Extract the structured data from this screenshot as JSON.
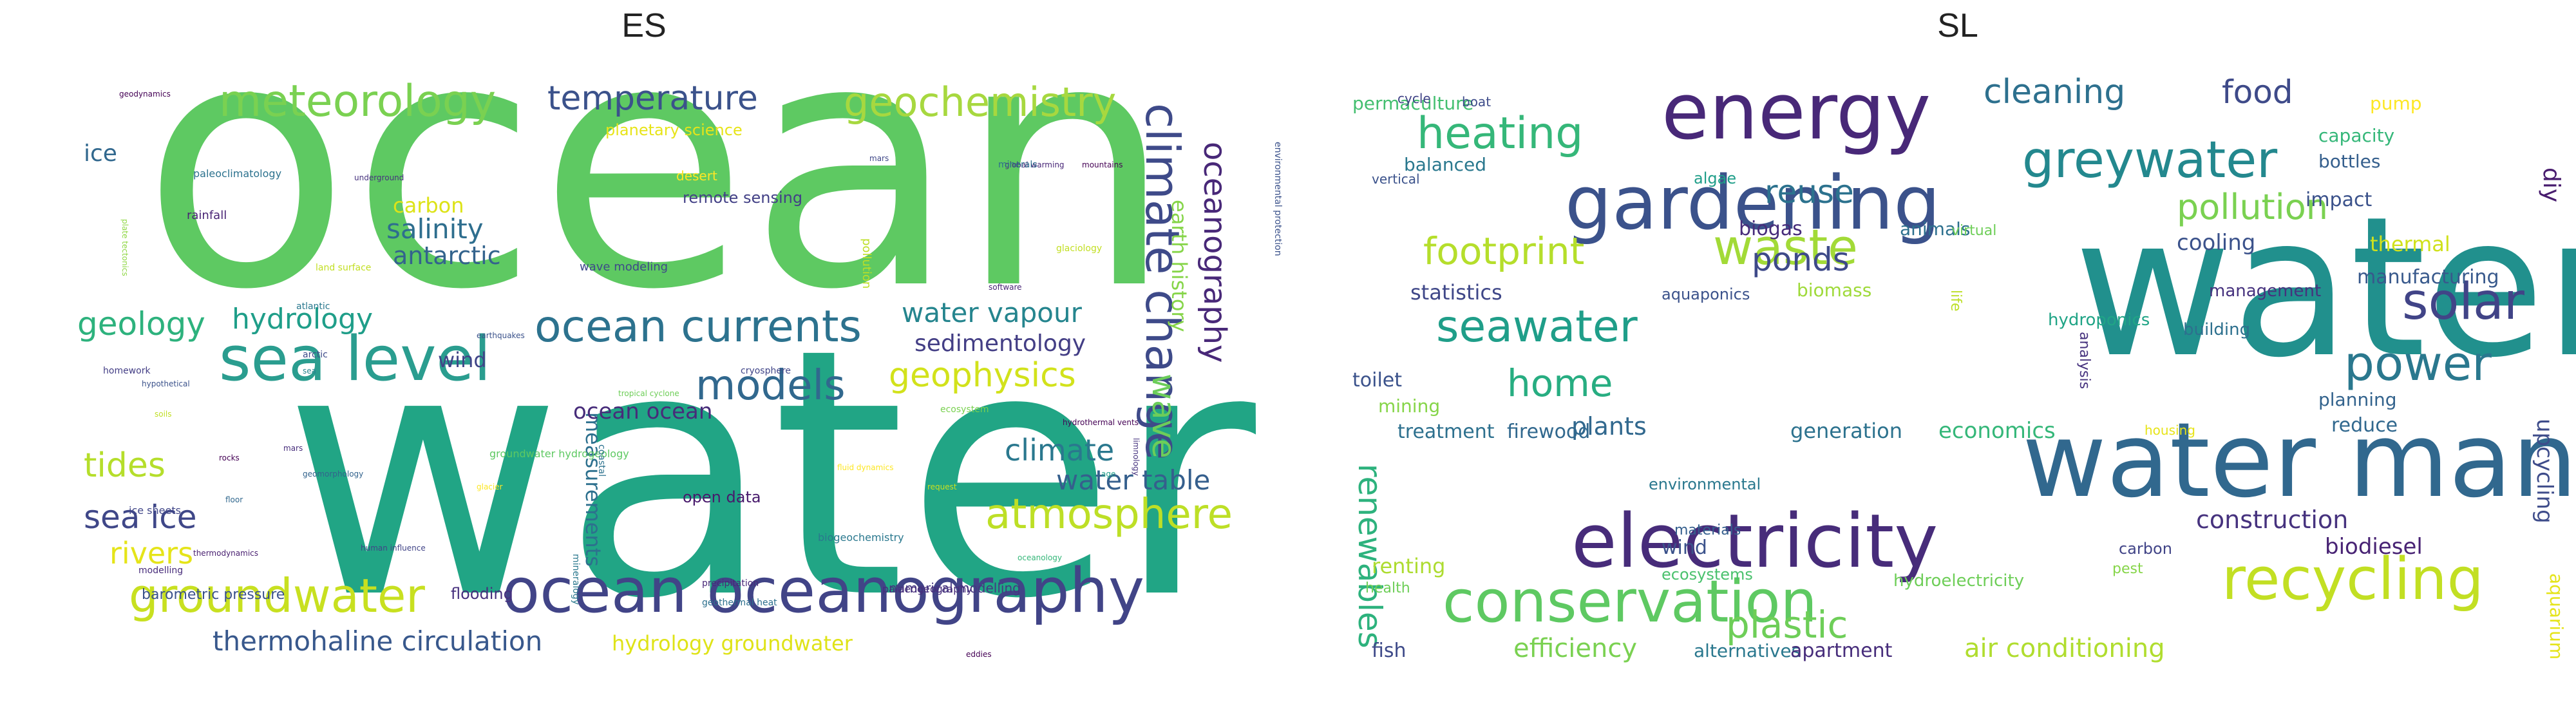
{
  "panels": [
    {
      "title": "ES",
      "words": [
        {
          "text": "ocean",
          "color": "#5ec962"
        },
        {
          "text": "water",
          "color": "#21a585"
        },
        {
          "text": "sea level",
          "color": "#2a9d8f"
        },
        {
          "text": "meteorology",
          "color": "#7ad151"
        },
        {
          "text": "geochemistry",
          "color": "#a7d83f"
        },
        {
          "text": "temperature",
          "color": "#3b528b"
        },
        {
          "text": "ocean currents",
          "color": "#2c728e"
        },
        {
          "text": "ocean oceanography",
          "color": "#414487"
        },
        {
          "text": "groundwater",
          "color": "#c8e020"
        },
        {
          "text": "climate change",
          "color": "#3e4a89"
        },
        {
          "text": "oceanography",
          "color": "#482878"
        },
        {
          "text": "models",
          "color": "#31688e"
        },
        {
          "text": "atmosphere",
          "color": "#bddf26"
        },
        {
          "text": "geophysics",
          "color": "#d2e21b"
        },
        {
          "text": "wave",
          "color": "#6ccd5a"
        },
        {
          "text": "climate",
          "color": "#2a788e"
        },
        {
          "text": "water vapour",
          "color": "#25858e"
        },
        {
          "text": "water table",
          "color": "#355f8d"
        },
        {
          "text": "sedimentology",
          "color": "#433e85"
        },
        {
          "text": "earth history",
          "color": "#86d549"
        },
        {
          "text": "geology",
          "color": "#2db27d"
        },
        {
          "text": "hydrology",
          "color": "#1f9e89"
        },
        {
          "text": "salinity",
          "color": "#2e6e8e"
        },
        {
          "text": "antarctic",
          "color": "#33638d"
        },
        {
          "text": "tides",
          "color": "#b5de2b"
        },
        {
          "text": "sea ice",
          "color": "#3f4788"
        },
        {
          "text": "rivers",
          "color": "#e5e419"
        },
        {
          "text": "ice",
          "color": "#31688e"
        },
        {
          "text": "carbon",
          "color": "#dde318"
        },
        {
          "text": "wind",
          "color": "#404588"
        },
        {
          "text": "thermohaline circulation",
          "color": "#38588c"
        },
        {
          "text": "hydrology groundwater",
          "color": "#dfe318"
        },
        {
          "text": "measurements",
          "color": "#2d708e"
        },
        {
          "text": "ocean ocean",
          "color": "#472c7a"
        },
        {
          "text": "remote sensing",
          "color": "#424086"
        },
        {
          "text": "planetary science",
          "color": "#e7e419"
        },
        {
          "text": "flooding",
          "color": "#46307e"
        },
        {
          "text": "barometric pressure",
          "color": "#3b528b"
        },
        {
          "text": "numerical modelling",
          "color": "#453781"
        },
        {
          "text": "open data",
          "color": "#481a6c"
        },
        {
          "text": "desert",
          "color": "#fde725"
        },
        {
          "text": "rainfall",
          "color": "#482374"
        },
        {
          "text": "wave modeling",
          "color": "#3e4989"
        },
        {
          "text": "biogeochemistry",
          "color": "#2a788e"
        },
        {
          "text": "groundwater hydrogeology",
          "color": "#5ec962"
        },
        {
          "text": "ice sheets",
          "color": "#404688"
        },
        {
          "text": "paleoclimatology",
          "color": "#2c728e"
        },
        {
          "text": "homework",
          "color": "#433e85"
        },
        {
          "text": "geodynamics",
          "color": "#440154"
        },
        {
          "text": "plate tectonics",
          "color": "#8fd744"
        },
        {
          "text": "earthquakes",
          "color": "#3b528b"
        },
        {
          "text": "underground",
          "color": "#46327e"
        },
        {
          "text": "global warming",
          "color": "#482677"
        },
        {
          "text": "mountains",
          "color": "#440154"
        },
        {
          "text": "glaciology",
          "color": "#c2df23"
        },
        {
          "text": "pollution",
          "color": "#bddf26"
        },
        {
          "text": "environmental protection",
          "color": "#3b528b"
        },
        {
          "text": "hydrothermal vents",
          "color": "#440154"
        },
        {
          "text": "tropical cyclone",
          "color": "#6ece58"
        },
        {
          "text": "mineralogy",
          "color": "#2a788e"
        },
        {
          "text": "human influence",
          "color": "#414487"
        },
        {
          "text": "precipitation",
          "color": "#482878"
        },
        {
          "text": "palaeogeography",
          "color": "#472d7b"
        },
        {
          "text": "fluid dynamics",
          "color": "#fde725"
        },
        {
          "text": "geothermal heat",
          "color": "#2d708e"
        },
        {
          "text": "cryosphere",
          "color": "#404588"
        },
        {
          "text": "hypothetical",
          "color": "#3b528b"
        },
        {
          "text": "soils",
          "color": "#c0df25"
        },
        {
          "text": "thermodynamics",
          "color": "#481f70"
        },
        {
          "text": "modelling",
          "color": "#472c7a"
        },
        {
          "text": "glacier",
          "color": "#fde725"
        },
        {
          "text": "rocks",
          "color": "#440154"
        },
        {
          "text": "eddies",
          "color": "#440154"
        },
        {
          "text": "software",
          "color": "#482575"
        },
        {
          "text": "minerals",
          "color": "#2e6e8e"
        },
        {
          "text": "floor",
          "color": "#31688e"
        },
        {
          "text": "atlantic",
          "color": "#2a788e"
        },
        {
          "text": "arctic",
          "color": "#3e4c8a"
        },
        {
          "text": "mars",
          "color": "#472d7b"
        },
        {
          "text": "geomorphology",
          "color": "#33638d"
        },
        {
          "text": "oceanology",
          "color": "#35b779"
        },
        {
          "text": "age",
          "color": "#1f9e89"
        },
        {
          "text": "limnology",
          "color": "#46337f"
        },
        {
          "text": "coastal",
          "color": "#2c728e"
        },
        {
          "text": "sea",
          "color": "#25848e"
        },
        {
          "text": "land surface",
          "color": "#c2df23"
        },
        {
          "text": "mars",
          "color": "#3f4788"
        },
        {
          "text": "ecosystem",
          "color": "#7ad151"
        },
        {
          "text": "request",
          "color": "#c8e020"
        }
      ]
    },
    {
      "title": "SL",
      "words": [
        {
          "text": "water",
          "color": "#21908d"
        },
        {
          "text": "water management",
          "color": "#31688e"
        },
        {
          "text": "energy",
          "color": "#482878"
        },
        {
          "text": "gardening",
          "color": "#3b528b"
        },
        {
          "text": "electricity",
          "color": "#472c7a"
        },
        {
          "text": "conservation",
          "color": "#5ec962"
        },
        {
          "text": "recycling",
          "color": "#c2df23"
        },
        {
          "text": "greywater",
          "color": "#23888e"
        },
        {
          "text": "waste",
          "color": "#a2da37"
        },
        {
          "text": "heating",
          "color": "#35b779"
        },
        {
          "text": "solar",
          "color": "#414487"
        },
        {
          "text": "power",
          "color": "#2a788e"
        },
        {
          "text": "pollution",
          "color": "#7ad151"
        },
        {
          "text": "seawater",
          "color": "#1f9e89"
        },
        {
          "text": "footprint",
          "color": "#b5de2b"
        },
        {
          "text": "home",
          "color": "#27ad81"
        },
        {
          "text": "cleaning",
          "color": "#2d708e"
        },
        {
          "text": "food",
          "color": "#3e4a89"
        },
        {
          "text": "reuse",
          "color": "#2c728e"
        },
        {
          "text": "ponds",
          "color": "#3e4a89"
        },
        {
          "text": "plastic",
          "color": "#6ece58"
        },
        {
          "text": "renewables",
          "color": "#2db27d"
        },
        {
          "text": "air conditioning",
          "color": "#b0dd2f"
        },
        {
          "text": "construction",
          "color": "#46327e"
        },
        {
          "text": "biodiesel",
          "color": "#482374"
        },
        {
          "text": "cooling",
          "color": "#3b528b"
        },
        {
          "text": "impact",
          "color": "#3b528b"
        },
        {
          "text": "thermal",
          "color": "#d0e11c"
        },
        {
          "text": "manufacturing",
          "color": "#38598c"
        },
        {
          "text": "planning",
          "color": "#33638d"
        },
        {
          "text": "reduce",
          "color": "#31688e"
        },
        {
          "text": "upcycling",
          "color": "#3e4c8a"
        },
        {
          "text": "aquarium",
          "color": "#e5e419"
        },
        {
          "text": "diy",
          "color": "#481c6e"
        },
        {
          "text": "bottles",
          "color": "#355f8d"
        },
        {
          "text": "capacity",
          "color": "#35b779"
        },
        {
          "text": "pump",
          "color": "#fde725"
        },
        {
          "text": "management",
          "color": "#46327e"
        },
        {
          "text": "building",
          "color": "#2d708e"
        },
        {
          "text": "housing",
          "color": "#e7e419"
        },
        {
          "text": "hydroponics",
          "color": "#20a486"
        },
        {
          "text": "biomass",
          "color": "#9fda3a"
        },
        {
          "text": "statistics",
          "color": "#3f4788"
        },
        {
          "text": "aquaponics",
          "color": "#3b528b"
        },
        {
          "text": "algae",
          "color": "#1f9e89"
        },
        {
          "text": "biogas",
          "color": "#472c7a"
        },
        {
          "text": "animals",
          "color": "#2d708e"
        },
        {
          "text": "virtual",
          "color": "#6ece58"
        },
        {
          "text": "life",
          "color": "#bddf26"
        },
        {
          "text": "balanced",
          "color": "#2a788e"
        },
        {
          "text": "vertical",
          "color": "#3b528b"
        },
        {
          "text": "permaculture",
          "color": "#44bf70"
        },
        {
          "text": "cycle",
          "color": "#414487"
        },
        {
          "text": "boat",
          "color": "#3e4c8a"
        },
        {
          "text": "toilet",
          "color": "#3b528b"
        },
        {
          "text": "mining",
          "color": "#86d549"
        },
        {
          "text": "treatment",
          "color": "#2d708e"
        },
        {
          "text": "firewood",
          "color": "#31688e"
        },
        {
          "text": "plants",
          "color": "#31688e"
        },
        {
          "text": "generation",
          "color": "#2c728e"
        },
        {
          "text": "economics",
          "color": "#35b779"
        },
        {
          "text": "environmental",
          "color": "#2a788e"
        },
        {
          "text": "analysis",
          "color": "#46327e"
        },
        {
          "text": "health",
          "color": "#6ece58"
        },
        {
          "text": "renting",
          "color": "#addc30"
        },
        {
          "text": "wind",
          "color": "#3b528b"
        },
        {
          "text": "ecosystems",
          "color": "#4ac16d"
        },
        {
          "text": "materials",
          "color": "#355f8d"
        },
        {
          "text": "hydroelectricity",
          "color": "#6ece58"
        },
        {
          "text": "carbon",
          "color": "#414487"
        },
        {
          "text": "pest",
          "color": "#86d549"
        },
        {
          "text": "fish",
          "color": "#3e4a89"
        },
        {
          "text": "efficiency",
          "color": "#7ad151"
        },
        {
          "text": "alternatives",
          "color": "#2a788e"
        },
        {
          "text": "apartment",
          "color": "#472d7b"
        }
      ]
    }
  ]
}
